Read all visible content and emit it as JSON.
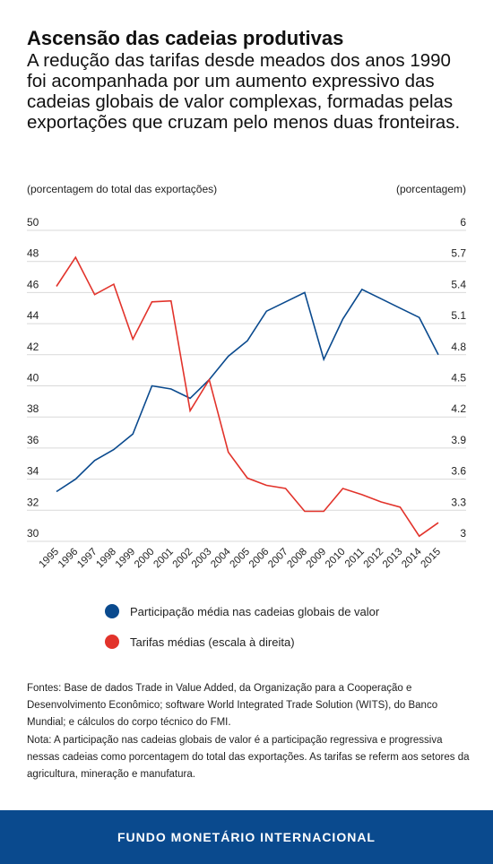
{
  "header": {
    "title": "Ascensão das cadeias produtivas",
    "subtitle": "A redução das tarifas desde meados dos anos 1990 foi acompanhada por um aumento expressivo das cadeias globais de valor complexas, formadas pelas exportações que cruzam pelo menos duas fronteiras."
  },
  "chart_data": {
    "type": "line",
    "ylabel_left": "(porcentagem do total das exportações)",
    "ylabel_right": "(porcentagem)",
    "x": [
      "1995",
      "1996",
      "1997",
      "1998",
      "1999",
      "2000",
      "2001",
      "2002",
      "2003",
      "2004",
      "2005",
      "2006",
      "2007",
      "2008",
      "2009",
      "2010",
      "2011",
      "2012",
      "2013",
      "2014",
      "2015"
    ],
    "ylim_left": [
      30,
      50
    ],
    "yticks_left": [
      "50",
      "48",
      "46",
      "44",
      "42",
      "40",
      "38",
      "36",
      "34",
      "32",
      "30"
    ],
    "ylim_right": [
      3,
      6
    ],
    "yticks_right": [
      "6",
      "5.7",
      "5.4",
      "5.1",
      "4.8",
      "4.5",
      "4.2",
      "3.9",
      "3.6",
      "3.3",
      "3"
    ],
    "series": [
      {
        "name": "Participação média nas cadeias globais de valor",
        "axis": "left",
        "color": "#0a4a8e",
        "values": [
          33.2,
          34.0,
          35.2,
          35.9,
          36.9,
          40.0,
          39.8,
          39.2,
          40.4,
          41.9,
          42.9,
          44.8,
          45.4,
          46.0,
          41.7,
          44.3,
          46.2,
          45.6,
          45.0,
          44.4,
          42.0
        ]
      },
      {
        "name": "Tarifas médias (escala à direita)",
        "axis": "right",
        "color": "#e2332b",
        "values": [
          5.46,
          5.74,
          5.38,
          5.48,
          4.95,
          5.31,
          5.32,
          4.26,
          4.56,
          3.86,
          3.61,
          3.54,
          3.51,
          3.29,
          3.29,
          3.51,
          3.45,
          3.38,
          3.33,
          3.05,
          3.18
        ]
      }
    ],
    "grid": true,
    "legend_position": "bottom"
  },
  "notes": {
    "sources": "Fontes: Base de dados Trade in Value Added, da Organização para a Cooperação e Desenvolvimento Econômico; software World Integrated Trade Solution (WITS), do Banco Mundial; e cálculos do corpo técnico do FMI.",
    "note": "Nota: A participação nas cadeias globais de valor é a participação regressiva e progressiva nessas cadeias como porcentagem do total das exportações. As tarifas se referm aos setores da agricultura, mineração e manufatura."
  },
  "footer": {
    "label": "FUNDO MONETÁRIO INTERNACIONAL",
    "color": "#0a4a8e"
  }
}
